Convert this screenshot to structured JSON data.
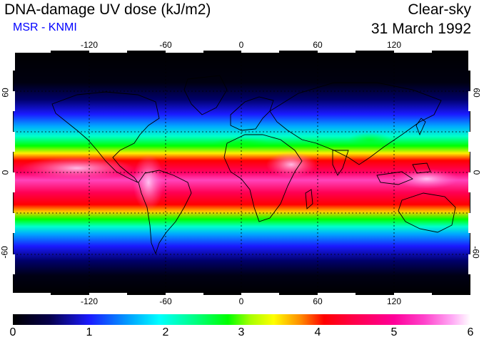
{
  "header": {
    "title": "DNA-damage UV dose (kJ/m2)",
    "subtitle": "MSR - KNMI",
    "scenario": "Clear-sky",
    "date": "31 March 1992"
  },
  "map": {
    "lon_ticks": [
      "-120",
      "-60",
      "0",
      "60",
      "120"
    ],
    "lat_ticks": [
      "60",
      "0",
      "-60"
    ],
    "graticule": "dotted",
    "coastlines": true
  },
  "colorbar": {
    "range": [
      0,
      6
    ],
    "labels": [
      "0",
      "1",
      "2",
      "3",
      "4",
      "5",
      "6"
    ],
    "colors": [
      "#000000",
      "#1a1aff",
      "#00ffff",
      "#00ff00",
      "#ffff00",
      "#ff0000",
      "#ff0099",
      "#ffffff"
    ]
  }
}
